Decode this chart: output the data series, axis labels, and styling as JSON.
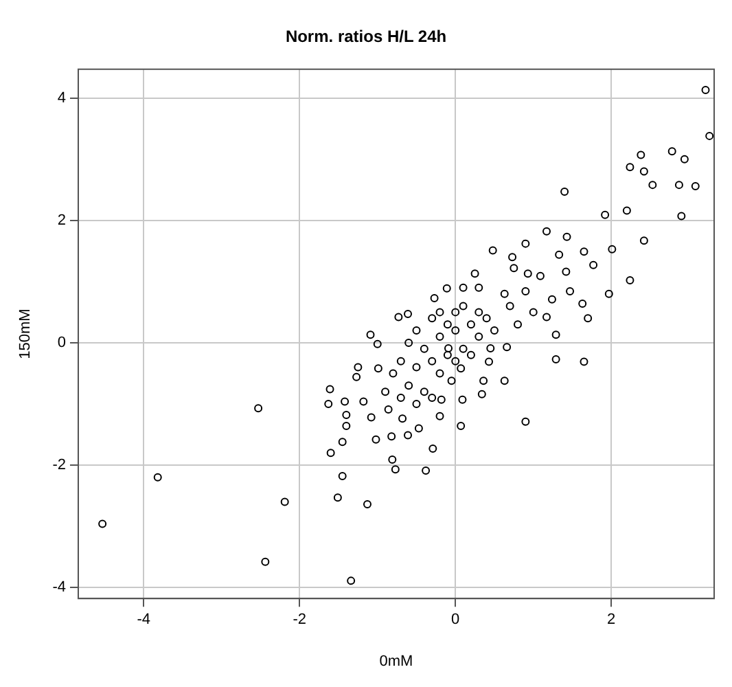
{
  "chart_data": {
    "type": "scatter",
    "title": "Norm. ratios H/L 24h",
    "xlabel": "0mM",
    "ylabel": "150mM",
    "xlim": [
      -4.84,
      3.32
    ],
    "ylim": [
      -4.18,
      4.47
    ],
    "xticks": [
      -4,
      -2,
      0,
      2
    ],
    "yticks": [
      -4,
      -2,
      0,
      2,
      4
    ],
    "grid": true,
    "marker": "circle",
    "series": [
      {
        "color": "#000000",
        "x": [
          -4.53,
          -3.82,
          -2.19,
          -2.44,
          -1.34,
          -1.13,
          -1.51,
          -1.45,
          -2.53,
          -0.77,
          -0.38,
          -0.29,
          -0.81,
          -1.6,
          -1.45,
          -1.02,
          -0.82,
          -0.61,
          -0.47,
          -0.2,
          0.07,
          0.9,
          -1.63,
          -1.61,
          -1.42,
          -1.4,
          -1.4,
          -1.08,
          -0.86,
          -0.68,
          -1.18,
          -0.18,
          0.09,
          0.34,
          -1.27,
          -1.25,
          -0.99,
          -0.09,
          -1.09,
          -1.0,
          -0.73,
          -0.61,
          -0.27,
          -0.11,
          0.25,
          0.48,
          0.9,
          1.17,
          1.43,
          0.73,
          1.33,
          0.75,
          0.93,
          1.09,
          1.42,
          0.9,
          0.63,
          1.24,
          1.47,
          1.63,
          1.7,
          1.17,
          1.29,
          1.29,
          1.65,
          0.66,
          0.45,
          0.43,
          0.36,
          0.63,
          -0.05,
          0.07,
          1.65,
          2.01,
          2.42,
          1.77,
          1.97,
          2.24,
          1.92,
          2.2,
          1.4,
          2.9,
          2.87,
          3.08,
          2.24,
          2.42,
          2.53,
          2.38,
          2.78,
          2.94,
          3.21,
          3.26,
          -0.5,
          -0.3,
          -0.2,
          0,
          0.1,
          0.3,
          -0.6,
          -0.4,
          -0.2,
          0,
          0.2,
          0.4,
          -0.7,
          -0.5,
          -0.3,
          -0.1,
          0.1,
          0.3,
          -0.8,
          -0.6,
          -0.4,
          -0.2,
          0,
          0.2,
          0.5,
          0.7,
          0.8,
          1.0,
          -0.1,
          0.1,
          0.3,
          -0.9,
          -0.7,
          -0.5,
          -0.3
        ],
        "values": [
          -2.96,
          -2.2,
          -2.6,
          -3.58,
          -3.89,
          -2.64,
          -2.53,
          -2.18,
          -1.07,
          -2.07,
          -2.09,
          -1.73,
          -1.91,
          -1.8,
          -1.62,
          -1.58,
          -1.53,
          -1.51,
          -1.4,
          -1.2,
          -1.36,
          -1.29,
          -1.0,
          -0.76,
          -0.96,
          -1.18,
          -1.36,
          -1.22,
          -1.09,
          -1.24,
          -0.96,
          -0.93,
          -0.93,
          -0.84,
          -0.56,
          -0.4,
          -0.42,
          -0.09,
          0.13,
          -0.02,
          0.42,
          0.47,
          0.73,
          0.89,
          1.13,
          1.51,
          1.62,
          1.82,
          1.73,
          1.4,
          1.44,
          1.22,
          1.13,
          1.09,
          1.16,
          0.84,
          0.8,
          0.71,
          0.84,
          0.64,
          0.4,
          0.42,
          0.13,
          -0.27,
          -0.31,
          -0.07,
          -0.09,
          -0.31,
          -0.62,
          -0.62,
          -0.62,
          -0.42,
          1.49,
          1.53,
          1.67,
          1.27,
          0.8,
          1.02,
          2.09,
          2.16,
          2.47,
          2.07,
          2.58,
          2.56,
          2.87,
          2.8,
          2.58,
          3.07,
          3.13,
          3.0,
          4.13,
          3.38,
          0.2,
          0.4,
          0.5,
          0.5,
          0.6,
          0.5,
          0,
          -0.1,
          0.1,
          0.2,
          0.3,
          0.4,
          -0.3,
          -0.4,
          -0.3,
          -0.2,
          -0.1,
          0.1,
          -0.5,
          -0.7,
          -0.8,
          -0.5,
          -0.3,
          -0.2,
          0.2,
          0.6,
          0.3,
          0.5,
          0.3,
          0.9,
          0.9,
          -0.8,
          -0.9,
          -1.0,
          -0.9
        ]
      }
    ]
  }
}
